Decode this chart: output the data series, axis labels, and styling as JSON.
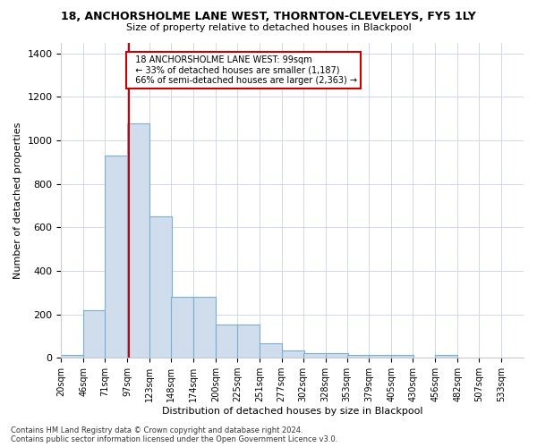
{
  "title1": "18, ANCHORSHOLME LANE WEST, THORNTON-CLEVELEYS, FY5 1LY",
  "title2": "Size of property relative to detached houses in Blackpool",
  "xlabel": "Distribution of detached houses by size in Blackpool",
  "ylabel": "Number of detached properties",
  "footnote": "Contains HM Land Registry data © Crown copyright and database right 2024.\nContains public sector information licensed under the Open Government Licence v3.0.",
  "categories": [
    "20sqm",
    "46sqm",
    "71sqm",
    "97sqm",
    "123sqm",
    "148sqm",
    "174sqm",
    "200sqm",
    "225sqm",
    "251sqm",
    "277sqm",
    "302sqm",
    "328sqm",
    "353sqm",
    "379sqm",
    "405sqm",
    "430sqm",
    "456sqm",
    "482sqm",
    "507sqm",
    "533sqm"
  ],
  "values": [
    15,
    220,
    930,
    1080,
    650,
    280,
    280,
    155,
    155,
    68,
    35,
    22,
    22,
    12,
    12,
    12,
    0,
    12,
    0,
    0,
    0
  ],
  "bar_color": "#cfdded",
  "bar_edge_color": "#7aafd4",
  "grid_color": "#d0d8e8",
  "annotation_box_color": "#ffffff",
  "annotation_box_edge": "#cc0000",
  "annotation_text": "  18 ANCHORSHOLME LANE WEST: 99sqm\n  ← 33% of detached houses are smaller (1,187)\n  66% of semi-detached houses are larger (2,363) →",
  "vline_color": "#cc0000",
  "property_size": 99,
  "ylim": [
    0,
    1450
  ],
  "bin_starts": [
    20,
    46,
    71,
    97,
    123,
    148,
    174,
    200,
    225,
    251,
    277,
    302,
    328,
    353,
    379,
    405,
    430,
    456,
    482,
    507,
    533
  ],
  "bin_width": 26
}
